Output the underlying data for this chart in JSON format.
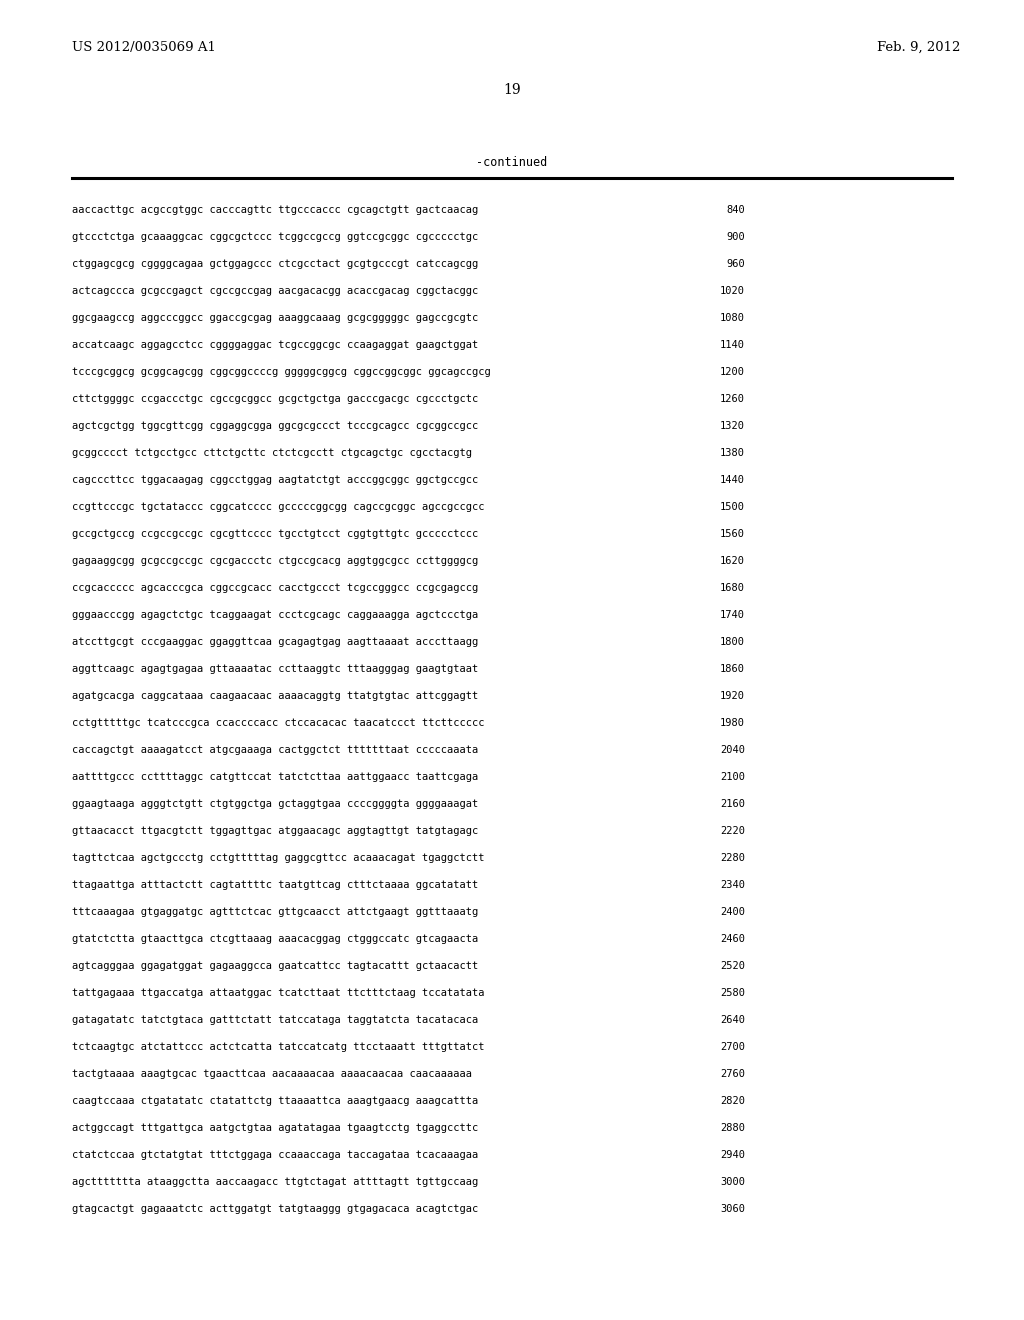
{
  "header_left": "US 2012/0035069 A1",
  "header_right": "Feb. 9, 2012",
  "page_number": "19",
  "continued_label": "-continued",
  "background_color": "#ffffff",
  "text_color": "#000000",
  "seq_font_size": 7.5,
  "header_font_size": 9.5,
  "page_num_font_size": 10,
  "sequence_lines": [
    [
      "aaccacttgc acgccgtggc cacccagttc ttgcccaccc cgcagctgtt gactcaacag",
      "840"
    ],
    [
      "gtccctctga gcaaaggcac cggcgctccc tcggccgccg ggtccgcggc cgccccctgc",
      "900"
    ],
    [
      "ctggagcgcg cggggcagaa gctggagccc ctcgcctact gcgtgcccgt catccagcgg",
      "960"
    ],
    [
      "actcagccca gcgccgagct cgccgccgag aacgacacgg acaccgacag cggctacggc",
      "1020"
    ],
    [
      "ggcgaagccg aggcccggcc ggaccgcgag aaaggcaaag gcgcgggggc gagccgcgtc",
      "1080"
    ],
    [
      "accatcaagc aggagcctcc cggggaggac tcgccggcgc ccaagaggat gaagctggat",
      "1140"
    ],
    [
      "tcccgcggcg gcggcagcgg cggcggccccg gggggcggcg cggccggcggc ggcagccgcg",
      "1200"
    ],
    [
      "cttctggggc ccgaccctgc cgccgcggcc gcgctgctga gacccgacgc cgccctgctc",
      "1260"
    ],
    [
      "agctcgctgg tggcgttcgg cggaggcgga ggcgcgccct tcccgcagcc cgcggccgcc",
      "1320"
    ],
    [
      "gcggcccct tctgcctgcc cttctgcttc ctctcgcctt ctgcagctgc cgcctacgtg",
      "1380"
    ],
    [
      "cagcccttcc tggacaagag cggcctggag aagtatctgt acccggcggc ggctgccgcc",
      "1440"
    ],
    [
      "ccgttcccgc tgctataccc cggcatcccc gcccccggcgg cagccgcggc agccgccgcc",
      "1500"
    ],
    [
      "gccgctgccg ccgccgccgc cgcgttcccc tgcctgtcct cggtgttgtc gccccctccc",
      "1560"
    ],
    [
      "gagaaggcgg gcgccgccgc cgcgaccctc ctgccgcacg aggtggcgcc ccttggggcg",
      "1620"
    ],
    [
      "ccgcaccccc agcacccgca cggccgcacc cacctgccct tcgccgggcc ccgcgagccg",
      "1680"
    ],
    [
      "gggaacccgg agagctctgc tcaggaagat ccctcgcagc caggaaagga agctccctga",
      "1740"
    ],
    [
      "atccttgcgt cccgaaggac ggaggttcaa gcagagtgag aagttaaaat acccttaagg",
      "1800"
    ],
    [
      "aggttcaagc agagtgagaa gttaaaatac ccttaaggtc tttaagggag gaagtgtaat",
      "1860"
    ],
    [
      "agatgcacga caggcataaa caagaacaac aaaacaggtg ttatgtgtac attcggagtt",
      "1920"
    ],
    [
      "cctgtttttgc tcatcccgca ccaccccacc ctccacacac taacatccct ttcttccccc",
      "1980"
    ],
    [
      "caccagctgt aaaagatcct atgcgaaaga cactggctct tttttttaat cccccaaata",
      "2040"
    ],
    [
      "aattttgccc ccttttaggc catgttccat tatctcttaa aattggaacc taattcgaga",
      "2100"
    ],
    [
      "ggaagtaaga agggtctgtt ctgtggctga gctaggtgaa ccccggggta ggggaaagat",
      "2160"
    ],
    [
      "gttaacacct ttgacgtctt tggagttgac atggaacagc aggtagttgt tatgtagagc",
      "2220"
    ],
    [
      "tagttctcaa agctgccctg cctgtttttag gaggcgttcc acaaacagat tgaggctctt",
      "2280"
    ],
    [
      "ttagaattga atttactctt cagtattttc taatgttcag ctttctaaaa ggcatatatt",
      "2340"
    ],
    [
      "tttcaaagaa gtgaggatgc agtttctcac gttgcaacct attctgaagt ggtttaaatg",
      "2400"
    ],
    [
      "gtatctctta gtaacttgca ctcgttaaag aaacacggag ctgggccatc gtcagaacta",
      "2460"
    ],
    [
      "agtcagggaa ggagatggat gagaaggcca gaatcattcc tagtacattt gctaacactt",
      "2520"
    ],
    [
      "tattgagaaa ttgaccatga attaatggac tcatcttaat ttctttctaag tccatatata",
      "2580"
    ],
    [
      "gatagatatc tatctgtaca gatttctatt tatccataga taggtatcta tacatacaca",
      "2640"
    ],
    [
      "tctcaagtgc atctattccc actctcatta tatccatcatg ttcctaaatt tttgttatct",
      "2700"
    ],
    [
      "tactgtaaaa aaagtgcac tgaacttcaa aacaaaacaa aaaacaacaa caacaaaaaa",
      "2760"
    ],
    [
      "caagtccaaa ctgatatatc ctatattctg ttaaaattca aaagtgaacg aaagcattta",
      "2820"
    ],
    [
      "actggccagt tttgattgca aatgctgtaa agatatagaa tgaagtcctg tgaggccttc",
      "2880"
    ],
    [
      "ctatctccaa gtctatgtat tttctggaga ccaaaccaga taccagataa tcacaaagaa",
      "2940"
    ],
    [
      "agcttttttta ataaggctta aaccaagacc ttgtctagat attttagtt tgttgccaag",
      "3000"
    ],
    [
      "gtagcactgt gagaaatctc acttggatgt tatgtaaggg gtgagacaca acagtctgac",
      "3060"
    ]
  ]
}
